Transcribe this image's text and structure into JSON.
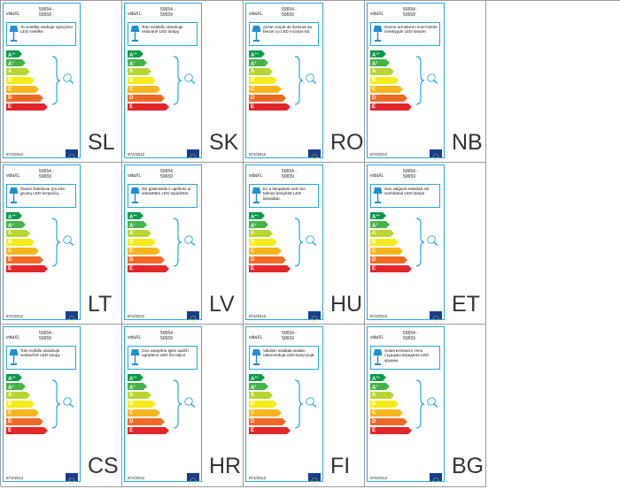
{
  "colors": {
    "border": "#29a6da",
    "lamp": "#1e8fd0",
    "eu_flag": "#173d8e",
    "classes": [
      "#0b9a49",
      "#45b347",
      "#b9d532",
      "#f6ec1b",
      "#f7b51d",
      "#ef6a24",
      "#e3262a"
    ]
  },
  "icons": [
    "lamp-icon",
    "bulb-icon",
    "eu-flag-icon",
    "brace-icon"
  ],
  "energy_classes": [
    {
      "label": "A",
      "sup": "++"
    },
    {
      "label": "A",
      "sup": "+"
    },
    {
      "label": "A",
      "sup": ""
    },
    {
      "label": "B",
      "sup": ""
    },
    {
      "label": "C",
      "sup": ""
    },
    {
      "label": "D",
      "sup": ""
    },
    {
      "label": "E",
      "sup": ""
    }
  ],
  "labels": [
    {
      "lang": "SL",
      "brand": "vidaXL",
      "code": [
        "50654 -",
        "50659"
      ],
      "text": "Ta svetilka vsebuje vgra-jeno LED svetilke.",
      "reg": "874/2012"
    },
    {
      "lang": "SK",
      "brand": "vidaXL",
      "code": [
        "50654 -",
        "50659"
      ],
      "text": "Toto svietidlo obsahuje vstavané LED lampy.",
      "reg": "874/2012"
    },
    {
      "lang": "RO",
      "brand": "vidaXL",
      "code": [
        "50654 -",
        "50659"
      ],
      "text": "Acest corpul de iluminat au becuri cu LED incorpo-rat.",
      "reg": "874/2012"
    },
    {
      "lang": "NB",
      "brand": "vidaXL",
      "code": [
        "50654 -",
        "50659"
      ],
      "text": "Denne armaturen inne-holder innebygde LED-lamper.",
      "reg": "874/2012"
    },
    {
      "lang": "LT",
      "brand": "vidaXL",
      "code": [
        "50654 -",
        "50659"
      ],
      "text": "Šiame šviestuve yra inte-gruotų LED lempučių.",
      "reg": "874/2012"
    },
    {
      "lang": "LV",
      "brand": "vidaXL",
      "code": [
        "50654 -",
        "50659"
      ],
      "text": "Šis gaismeklis ir aprīkots ar iebūvētām LED spuldzēm.",
      "reg": "874/2012"
    },
    {
      "lang": "HU",
      "brand": "vidaXL",
      "code": [
        "50654 -",
        "50659"
      ],
      "text": "Ez a lámpatest nem tar-talmaz beépített LED lámpákat.",
      "reg": "874/2012"
    },
    {
      "lang": "ET",
      "brand": "vidaXL",
      "code": [
        "50654 -",
        "50659"
      ],
      "text": "See valgusti sisaldab sis-seehitatud LED-lampe",
      "reg": "874/2012"
    },
    {
      "lang": "CS",
      "brand": "vidaXL",
      "code": [
        "50654 -",
        "50659"
      ],
      "text": "Toto svítidlo obsahuje vestavěné LED lampy.",
      "reg": "874/2012"
    },
    {
      "lang": "HR",
      "brand": "vidaXL",
      "code": [
        "50654 -",
        "50659"
      ],
      "text": "Ovo rasvjetno tijelo sadrži ugrađene LED ža-ruljice",
      "reg": "874/2012"
    },
    {
      "lang": "FI",
      "brand": "vidaXL",
      "code": [
        "50654 -",
        "50659"
      ],
      "text": "Valaisin sisältää sisään-rakennettuja LED-lamp-pujä.",
      "reg": "874/2012"
    },
    {
      "lang": "BG",
      "brand": "vidaXL",
      "code": [
        "50654 -",
        "50659"
      ],
      "text": "Осветителното тяло съдържа вградени LED крушки.",
      "reg": "874/2012"
    }
  ]
}
